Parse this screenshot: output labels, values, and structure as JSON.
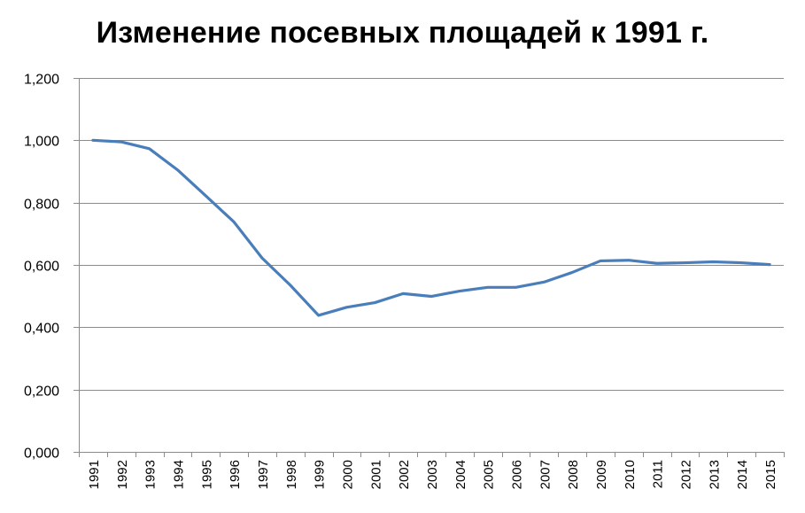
{
  "chart_data": {
    "type": "line",
    "title": "Изменение посевных площадей к 1991 г.",
    "xlabel": "",
    "ylabel": "",
    "ylim": [
      0,
      1.2
    ],
    "yticks": [
      "0,000",
      "0,200",
      "0,400",
      "0,600",
      "0,800",
      "1,000",
      "1,200"
    ],
    "grid": true,
    "legend": "none",
    "line_color": "#4a7ebb",
    "categories": [
      "1991",
      "1992",
      "1993",
      "1994",
      "1995",
      "1996",
      "1997",
      "1998",
      "1999",
      "2000",
      "2001",
      "2002",
      "2003",
      "2004",
      "2005",
      "2006",
      "2007",
      "2008",
      "2009",
      "2010",
      "2011",
      "2012",
      "2013",
      "2014",
      "2015"
    ],
    "series": [
      {
        "values": [
          1.0,
          0.995,
          0.973,
          0.905,
          0.822,
          0.738,
          0.622,
          0.535,
          0.438,
          0.464,
          0.479,
          0.508,
          0.499,
          0.516,
          0.528,
          0.528,
          0.545,
          0.576,
          0.613,
          0.615,
          0.605,
          0.607,
          0.61,
          0.607,
          0.601
        ]
      }
    ]
  }
}
